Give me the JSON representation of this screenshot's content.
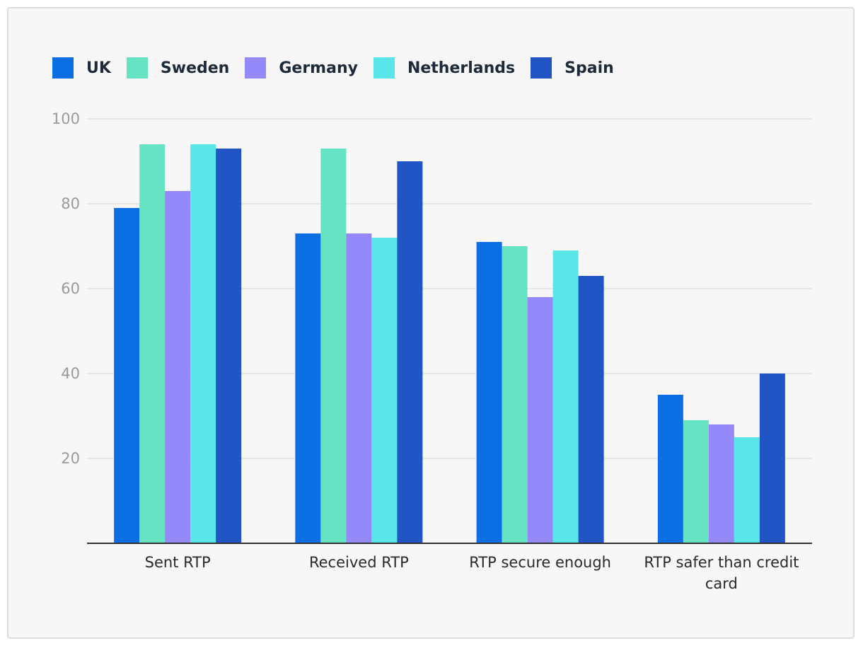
{
  "chart_data": {
    "type": "bar",
    "title": "",
    "xlabel": "",
    "ylabel": "",
    "ylim": [
      0,
      100
    ],
    "yticks": [
      20,
      40,
      60,
      80,
      100
    ],
    "grid": true,
    "legend_position": "top-left",
    "categories": [
      "Sent RTP",
      "Received RTP",
      "RTP secure enough",
      "RTP safer than credit card"
    ],
    "category_lines": [
      [
        "Sent RTP"
      ],
      [
        "Received RTP"
      ],
      [
        "RTP secure enough"
      ],
      [
        "RTP safer than credit",
        "card"
      ]
    ],
    "series": [
      {
        "name": "UK",
        "color": "#0b6fe3",
        "values": [
          79,
          73,
          71,
          35
        ]
      },
      {
        "name": "Sweden",
        "color": "#65e3c2",
        "values": [
          94,
          93,
          70,
          29
        ]
      },
      {
        "name": "Germany",
        "color": "#9488fb",
        "values": [
          83,
          73,
          58,
          28
        ]
      },
      {
        "name": "Netherlands",
        "color": "#5ae5e8",
        "values": [
          94,
          72,
          69,
          25
        ]
      },
      {
        "name": "Spain",
        "color": "#2155c5",
        "values": [
          93,
          90,
          63,
          40
        ]
      }
    ]
  }
}
